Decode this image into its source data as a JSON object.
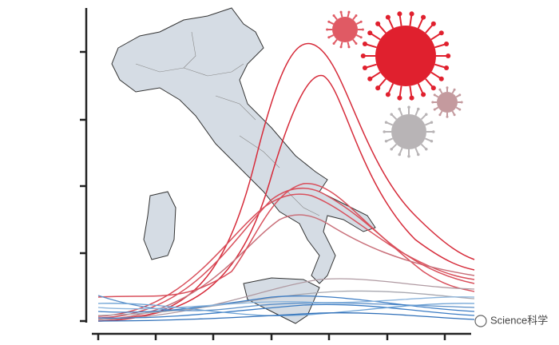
{
  "watermark": {
    "text": "Science科学"
  }
}
